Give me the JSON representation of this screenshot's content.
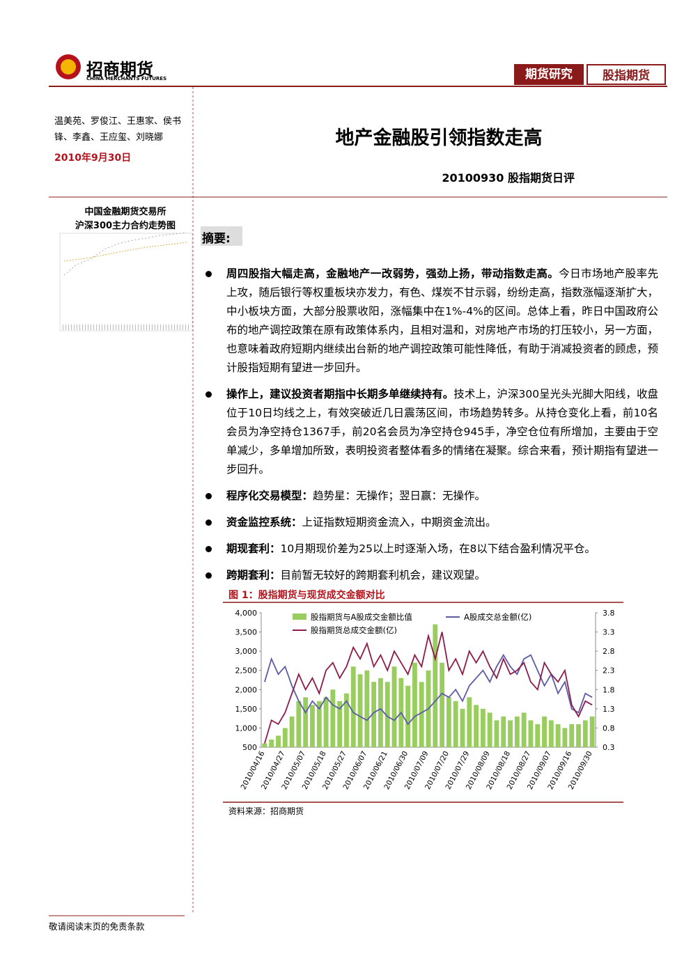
{
  "header": {
    "logo_text": "招商期货",
    "logo_en": "CHINA MERCHANTS FUTURES",
    "tab_1": "期货研究",
    "tab_2": "股指期货"
  },
  "sidebar": {
    "authors": "温美苑、罗俊江、王惠家、侯书锋、李鑫、王应玺、刘晓娜",
    "date": "2010年9月30日",
    "thumbnail_title_1": "中国金融期货交易所",
    "thumbnail_title_2": "沪深300主力合约走势图"
  },
  "title": "地产金融股引领指数走高",
  "subtitle": "20100930 股指期货日评",
  "summary": {
    "heading": "摘要:",
    "bullets": [
      {
        "bold": "周四股指大幅走高，金融地产一改弱势，强劲上扬，带动指数走高。",
        "text": "今日市场地产股率先上攻，随后银行等权重板块亦发力，有色、煤炭不甘示弱，纷纷走高，指数涨幅逐渐扩大，中小板块方面，大部分股票收阳，涨幅集中在1%-4%的区间。总体上看，昨日中国政府公布的地产调控政策在原有政策体系内，且相对温和，对房地产市场的打压较小，另一方面，也意味着政府短期内继续出台新的地产调控政策可能性降低，有助于消减投资者的顾虑，预计股指短期有望进一步回升。"
      },
      {
        "bold": "操作上，建议投资者期指中长期多单继续持有。",
        "text": "技术上，沪深300呈光头光脚大阳线，收盘位于10日均线之上，有效突破近几日震荡区间，市场趋势转多。从持仓变化上看，前10名会员为净空持仓1367手，前20名会员为净空持仓945手，净空仓位有所增加，主要由于空单减少，多单增加所致，表明投资者整体看多的情绪在凝聚。综合来看，预计期指有望进一步回升。"
      },
      {
        "bold": "程序化交易模型：",
        "text": "趋势星：无操作；翌日赢：无操作。"
      },
      {
        "bold": "资金监控系统：",
        "text": "上证指数短期资金流入，中期资金流出。"
      },
      {
        "bold": "期现套利：",
        "text": "10月期现价差为25以上时逐渐入场，在8以下结合盈利情况平仓。"
      },
      {
        "bold": "跨期套利：",
        "text": "目前暂无较好的跨期套利机会，建议观望。"
      }
    ]
  },
  "figure": {
    "title": "图 1：股指期货与现货成交金额对比",
    "source": "资料来源：招商期货"
  },
  "chart_data": {
    "type": "bar-line",
    "categories": [
      "2010/04/16",
      null,
      null,
      "2010/04/27",
      null,
      null,
      "2010/05/07",
      null,
      null,
      "2010/05/18",
      null,
      null,
      "2010/05/27",
      null,
      null,
      "2010/06/07",
      null,
      null,
      "2010/06/21",
      null,
      null,
      "2010/06/30",
      null,
      null,
      "2010/07/09",
      null,
      null,
      "2010/07/20",
      null,
      null,
      "2010/07/29",
      null,
      null,
      "2010/08/09",
      null,
      null,
      "2010/08/18",
      null,
      null,
      "2010/08/27",
      null,
      null,
      "2010/09/07",
      null,
      null,
      "2010/09/16",
      null,
      null,
      "2010/09/30"
    ],
    "series": [
      {
        "name": "股指期货与A股成交金额比值",
        "type": "bar",
        "axis": "y2",
        "color": "#9acd5f",
        "values": [
          0.4,
          0.5,
          0.6,
          0.8,
          1.1,
          1.5,
          1.6,
          1.4,
          1.5,
          1.6,
          1.8,
          1.5,
          1.7,
          2.4,
          2.2,
          2.3,
          2.0,
          2.1,
          2.0,
          2.4,
          2.1,
          1.9,
          2.5,
          2.0,
          2.3,
          3.5,
          2.5,
          1.6,
          1.5,
          1.3,
          1.6,
          1.4,
          1.3,
          1.2,
          1.0,
          1.1,
          1.0,
          1.1,
          1.2,
          1.0,
          0.9,
          1.1,
          1.0,
          0.9,
          0.8,
          0.9,
          0.9,
          1.0,
          1.1
        ]
      },
      {
        "name": "A股成交总金额(亿)",
        "type": "line",
        "color": "#5b5ba6",
        "values": [
          2200,
          2800,
          2400,
          2600,
          2100,
          1700,
          1400,
          1700,
          1500,
          1800,
          1600,
          1500,
          1700,
          1400,
          1300,
          1200,
          1400,
          1500,
          1300,
          1200,
          1400,
          1100,
          1300,
          1400,
          1500,
          1700,
          1900,
          1800,
          2000,
          1700,
          2100,
          2300,
          2500,
          2200,
          2600,
          2900,
          2600,
          2400,
          2800,
          2900,
          2500,
          2100,
          2400,
          1900,
          2200,
          1500,
          1400,
          1900,
          1800
        ]
      },
      {
        "name": "股指期货总成交金额(亿)",
        "type": "line",
        "color": "#8e1a4a",
        "values": [
          600,
          1200,
          1100,
          1400,
          1900,
          2400,
          2000,
          2300,
          1900,
          2500,
          2700,
          2300,
          2600,
          3100,
          2800,
          3200,
          2600,
          2900,
          2500,
          3000,
          2700,
          2400,
          2900,
          2600,
          3400,
          2800,
          3500,
          2500,
          2800,
          2400,
          3000,
          2700,
          3000,
          2600,
          2300,
          2800,
          2400,
          2500,
          2700,
          2200,
          2000,
          2700,
          2400,
          2200,
          2500,
          1600,
          1300,
          1700,
          1600
        ]
      }
    ],
    "ylim": [
      500,
      4000
    ],
    "yticks": [
      500,
      {
        "value": 1000,
        "label": "1,000"
      },
      {
        "value": 1500,
        "label": "1,500"
      },
      {
        "value": 2000,
        "label": "2,000"
      },
      {
        "value": 2500,
        "label": "2,500"
      },
      {
        "value": 3000,
        "label": "3,000"
      },
      {
        "value": 3500,
        "label": "3,500"
      },
      {
        "value": 4000,
        "label": "4,000"
      }
    ],
    "y2lim": [
      0.3,
      3.8
    ],
    "y2ticks": [
      0.3,
      0.8,
      1.3,
      1.8,
      2.3,
      2.8,
      3.3,
      3.8
    ],
    "grid": false
  },
  "footer": "敬请阅读末页的免责条款"
}
